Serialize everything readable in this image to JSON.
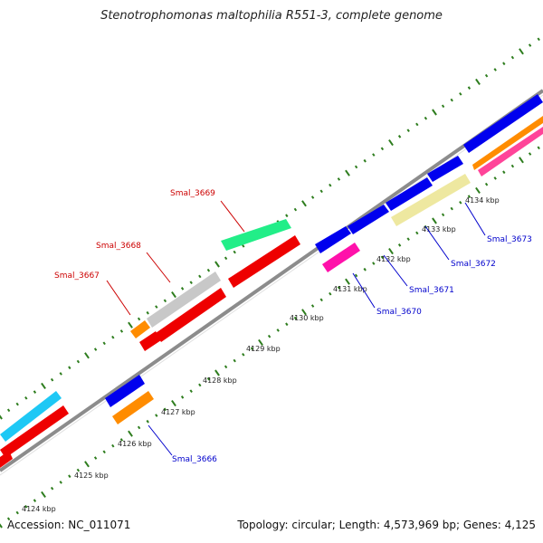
{
  "title": "Stenotrophomonas maltophilia R551-3, complete genome",
  "footer": {
    "accession": "Accession: NC_011071",
    "summary": "Topology: circular; Length: 4,573,969 bp; Genes: 4,125"
  },
  "colors": {
    "backbone": "#8c8c8c",
    "tick": "#2e7d1e",
    "label_forward": "#cc0000",
    "label_reverse": "#0000cc"
  },
  "tick_labels": [
    "4124 kbp",
    "4125 kbp",
    "4126 kbp",
    "4127 kbp",
    "4128 kbp",
    "4129 kbp",
    "4130 kbp",
    "4131 kbp",
    "4132 kbp",
    "4133 kbp",
    "4134 kbp"
  ],
  "gene_labels": [
    {
      "id": "Smal_3667",
      "strand": "forward"
    },
    {
      "id": "Smal_3668",
      "strand": "forward"
    },
    {
      "id": "Smal_3669",
      "strand": "forward"
    },
    {
      "id": "Smal_3666",
      "strand": "reverse"
    },
    {
      "id": "Smal_3670",
      "strand": "reverse"
    },
    {
      "id": "Smal_3671",
      "strand": "reverse"
    },
    {
      "id": "Smal_3672",
      "strand": "reverse"
    },
    {
      "id": "Smal_3673",
      "strand": "reverse"
    }
  ]
}
